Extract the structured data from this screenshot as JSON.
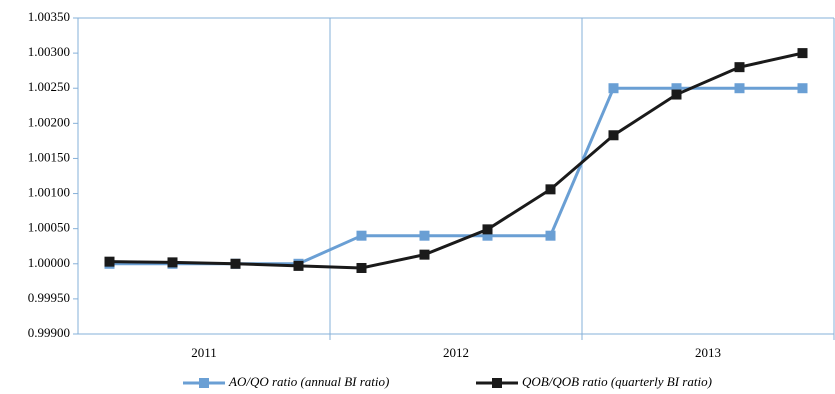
{
  "chart_data": {
    "type": "line",
    "categories": [
      null,
      null,
      null,
      null,
      null,
      null,
      null,
      null,
      null,
      null,
      null,
      null
    ],
    "category_groups": [
      "2011",
      "2012",
      "2013"
    ],
    "series": [
      {
        "name": "AO/QO ratio (annual BI ratio)",
        "color": "#6a9fd4",
        "values": [
          1.0,
          1.0,
          1.0,
          1.0,
          1.0004,
          1.0004,
          1.0004,
          1.0004,
          1.0025,
          1.0025,
          1.0025,
          1.0025
        ]
      },
      {
        "name": "QOB/QOB ratio (quarterly BI ratio)",
        "color": "#1a1a1a",
        "values": [
          1.00003,
          1.00002,
          1.0,
          0.99997,
          0.99994,
          1.00013,
          1.00049,
          1.00106,
          1.00183,
          1.00241,
          1.0028,
          1.003
        ]
      }
    ],
    "ylim": [
      0.999,
      1.0035
    ],
    "yticks": [
      {
        "value": 0.999,
        "label": "0.99900"
      },
      {
        "value": 0.9995,
        "label": "0.99950"
      },
      {
        "value": 1.0,
        "label": "1.00000"
      },
      {
        "value": 1.0005,
        "label": "1.00050"
      },
      {
        "value": 1.001,
        "label": "1.00100"
      },
      {
        "value": 1.0015,
        "label": "1.00150"
      },
      {
        "value": 1.002,
        "label": "1.00200"
      },
      {
        "value": 1.0025,
        "label": "1.00250"
      },
      {
        "value": 1.003,
        "label": "1.00300"
      },
      {
        "value": 1.0035,
        "label": "1.00350"
      }
    ],
    "legend": "bottom"
  }
}
